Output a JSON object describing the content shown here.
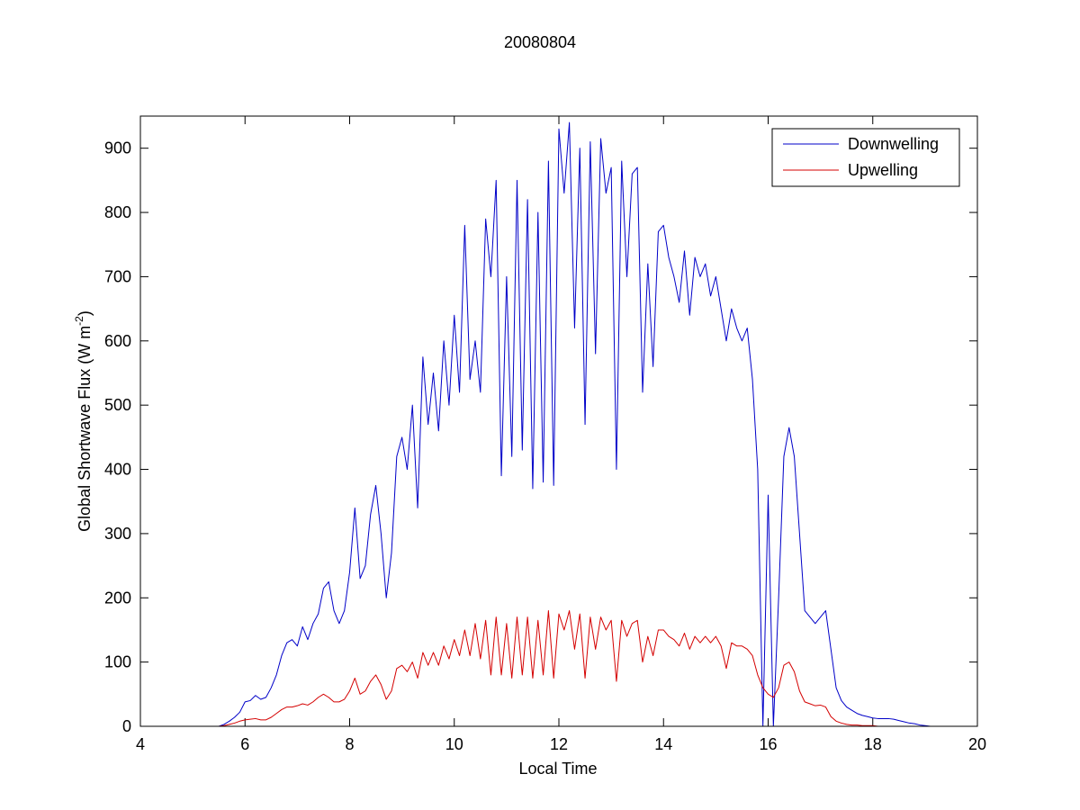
{
  "chart_data": {
    "type": "line",
    "title": "20080804",
    "x_label": "Local Time",
    "y_label": {
      "text": "Global Shortwave Flux (W m",
      "superscript": "-2",
      "suffix": ")"
    },
    "xlim": [
      4,
      20
    ],
    "xticks": [
      4,
      6,
      8,
      10,
      12,
      14,
      16,
      18,
      20
    ],
    "ylim": [
      0,
      950
    ],
    "yticks": [
      0,
      100,
      200,
      300,
      400,
      500,
      600,
      700,
      800,
      900
    ],
    "grid": false,
    "legend": "upper right",
    "x": [
      4,
      5.5,
      5.6,
      5.7,
      5.8,
      5.9,
      6.0,
      6.1,
      6.2,
      6.3,
      6.4,
      6.5,
      6.6,
      6.7,
      6.8,
      6.9,
      7.0,
      7.1,
      7.2,
      7.3,
      7.4,
      7.5,
      7.6,
      7.7,
      7.8,
      7.9,
      8.0,
      8.1,
      8.2,
      8.3,
      8.4,
      8.5,
      8.6,
      8.7,
      8.8,
      8.9,
      9.0,
      9.1,
      9.2,
      9.3,
      9.4,
      9.5,
      9.6,
      9.7,
      9.8,
      9.9,
      10.0,
      10.1,
      10.2,
      10.3,
      10.4,
      10.5,
      10.6,
      10.7,
      10.8,
      10.9,
      11.0,
      11.1,
      11.2,
      11.3,
      11.4,
      11.5,
      11.6,
      11.7,
      11.8,
      11.9,
      12.0,
      12.1,
      12.2,
      12.3,
      12.4,
      12.5,
      12.6,
      12.7,
      12.8,
      12.9,
      13.0,
      13.1,
      13.2,
      13.3,
      13.4,
      13.5,
      13.6,
      13.7,
      13.8,
      13.9,
      14.0,
      14.1,
      14.2,
      14.3,
      14.4,
      14.5,
      14.6,
      14.7,
      14.8,
      14.9,
      15.0,
      15.1,
      15.2,
      15.3,
      15.4,
      15.5,
      15.6,
      15.7,
      15.8,
      15.9,
      16.0,
      16.1,
      16.2,
      16.3,
      16.4,
      16.5,
      16.6,
      16.7,
      16.8,
      16.9,
      17.0,
      17.1,
      17.2,
      17.3,
      17.4,
      17.5,
      17.6,
      17.7,
      17.8,
      17.9,
      18.0,
      18.1,
      18.2,
      18.3,
      18.4,
      18.5,
      18.6,
      18.7,
      18.8,
      18.9,
      19.0,
      19.1
    ],
    "series": [
      {
        "name": "Downwelling",
        "color": "#0000c8",
        "values": [
          0,
          0,
          3,
          8,
          14,
          22,
          38,
          40,
          48,
          42,
          45,
          60,
          80,
          110,
          130,
          135,
          125,
          155,
          135,
          160,
          175,
          215,
          225,
          180,
          160,
          180,
          240,
          340,
          230,
          250,
          330,
          375,
          300,
          200,
          270,
          420,
          450,
          400,
          500,
          340,
          575,
          470,
          550,
          460,
          600,
          500,
          640,
          520,
          780,
          540,
          600,
          520,
          790,
          700,
          850,
          390,
          700,
          420,
          850,
          430,
          820,
          370,
          800,
          380,
          880,
          375,
          930,
          830,
          940,
          620,
          900,
          470,
          910,
          580,
          915,
          830,
          870,
          400,
          880,
          700,
          860,
          870,
          520,
          720,
          560,
          770,
          780,
          730,
          700,
          660,
          740,
          640,
          730,
          700,
          720,
          670,
          700,
          650,
          600,
          650,
          620,
          600,
          620,
          540,
          400,
          0,
          360,
          0,
          200,
          420,
          465,
          420,
          300,
          180,
          170,
          160,
          170,
          180,
          120,
          60,
          40,
          30,
          25,
          20,
          17,
          15,
          13,
          12,
          12,
          12,
          11,
          9,
          7,
          5,
          4,
          2,
          1,
          0
        ]
      },
      {
        "name": "Upwelling",
        "color": "#d40000",
        "values": [
          0,
          0,
          1,
          3,
          5,
          8,
          10,
          11,
          12,
          10,
          10,
          14,
          20,
          26,
          30,
          30,
          32,
          35,
          33,
          38,
          45,
          50,
          45,
          38,
          38,
          42,
          55,
          75,
          50,
          55,
          70,
          80,
          65,
          42,
          55,
          90,
          95,
          85,
          100,
          75,
          115,
          95,
          115,
          95,
          125,
          105,
          135,
          110,
          150,
          110,
          160,
          105,
          165,
          80,
          170,
          80,
          160,
          75,
          170,
          80,
          170,
          75,
          165,
          80,
          180,
          75,
          175,
          150,
          180,
          120,
          175,
          75,
          170,
          120,
          170,
          150,
          165,
          70,
          165,
          140,
          160,
          165,
          100,
          140,
          110,
          150,
          150,
          140,
          135,
          125,
          145,
          120,
          140,
          130,
          140,
          130,
          140,
          125,
          90,
          130,
          125,
          125,
          120,
          110,
          80,
          60,
          50,
          45,
          60,
          95,
          100,
          85,
          55,
          38,
          35,
          32,
          33,
          30,
          15,
          8,
          5,
          3,
          2,
          2,
          1,
          1,
          1,
          0,
          0,
          0,
          0,
          0,
          0,
          0,
          0,
          0,
          0,
          0
        ]
      }
    ]
  }
}
